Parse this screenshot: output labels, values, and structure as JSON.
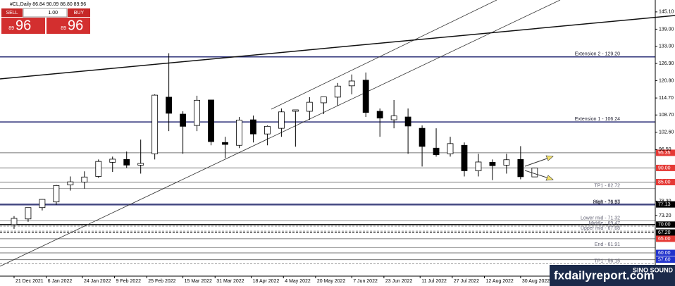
{
  "header": {
    "title": "#CL,Daily  86.84 90.09 86.80 89.96"
  },
  "trade_panel": {
    "sell_label": "SELL",
    "buy_label": "BUY",
    "lot": "1.00",
    "sell_small": "89",
    "sell_big": "96",
    "buy_small": "89",
    "buy_big": "96"
  },
  "watermark": {
    "site": "fxdailyreport.com",
    "brand": "SINO SOUND"
  },
  "chart_data": {
    "type": "candlestick",
    "xlim": [
      "2021-12-14",
      "2022-11-05"
    ],
    "ylim": [
      51.8,
      149.3
    ],
    "yticks": [
      {
        "value": 145.1,
        "label": "145.10"
      },
      {
        "value": 139,
        "label": "139.00"
      },
      {
        "value": 133,
        "label": "133.00"
      },
      {
        "value": 126.9,
        "label": "126.90"
      },
      {
        "value": 120.8,
        "label": "120.80"
      },
      {
        "value": 114.7,
        "label": "114.70"
      },
      {
        "value": 108.7,
        "label": "108.70"
      },
      {
        "value": 102.6,
        "label": "102.60"
      },
      {
        "value": 96.5,
        "label": "96.50"
      },
      {
        "value": 78.3,
        "label": "78.30"
      },
      {
        "value": 73.2,
        "label": "73.20"
      }
    ],
    "xticks": [
      {
        "value": "2021-12-21",
        "label": "21 Dec 2021"
      },
      {
        "value": "2022-01-06",
        "label": "6 Jan 2022"
      },
      {
        "value": "2022-01-24",
        "label": "24 Jan 2022"
      },
      {
        "value": "2022-02-09",
        "label": "9 Feb 2022"
      },
      {
        "value": "2022-02-25",
        "label": "25 Feb 2022"
      },
      {
        "value": "2022-03-15",
        "label": "15 Mar 2022"
      },
      {
        "value": "2022-03-31",
        "label": "31 Mar 2022"
      },
      {
        "value": "2022-04-18",
        "label": "18 Apr 2022"
      },
      {
        "value": "2022-05-04",
        "label": "4 May 2022"
      },
      {
        "value": "2022-05-20",
        "label": "20 May 2022"
      },
      {
        "value": "2022-06-07",
        "label": "7 Jun 2022"
      },
      {
        "value": "2022-06-23",
        "label": "23 Jun 2022"
      },
      {
        "value": "2022-07-11",
        "label": "11 Jul 2022"
      },
      {
        "value": "2022-07-27",
        "label": "27 Jul 2022"
      },
      {
        "value": "2022-08-12",
        "label": "12 Aug 2022"
      },
      {
        "value": "2022-08-30",
        "label": "30 Aug 2022"
      }
    ],
    "up_color": "#ffffff",
    "down_color": "#000000",
    "x": [
      "2021-12-21",
      "2021-12-28",
      "2022-01-04",
      "2022-01-11",
      "2022-01-18",
      "2022-01-25",
      "2022-02-01",
      "2022-02-08",
      "2022-02-15",
      "2022-02-22",
      "2022-03-01",
      "2022-03-08",
      "2022-03-15",
      "2022-03-22",
      "2022-03-29",
      "2022-04-05",
      "2022-04-12",
      "2022-04-19",
      "2022-04-26",
      "2022-05-03",
      "2022-05-10",
      "2022-05-17",
      "2022-05-24",
      "2022-05-31",
      "2022-06-07",
      "2022-06-14",
      "2022-06-21",
      "2022-06-28",
      "2022-07-05",
      "2022-07-12",
      "2022-07-19",
      "2022-07-26",
      "2022-08-02",
      "2022-08-09",
      "2022-08-16",
      "2022-08-23",
      "2022-08-30",
      "2022-09-06"
    ],
    "open": [
      70,
      72,
      76,
      78,
      84,
      85,
      87,
      92,
      93,
      91,
      95,
      115,
      109,
      105,
      114,
      99,
      98,
      107,
      102,
      104,
      110,
      110,
      113,
      115,
      119,
      121,
      110,
      107,
      108,
      104,
      97,
      95,
      98,
      89,
      92,
      91,
      93,
      86.84
    ],
    "high": [
      73,
      76,
      79,
      84,
      87,
      88.8,
      93,
      94,
      95.8,
      100,
      116,
      130.5,
      110,
      115.5,
      114,
      101,
      108,
      108.5,
      105,
      111,
      110,
      115,
      115,
      120,
      123,
      123.7,
      111,
      114,
      111,
      105,
      104,
      101,
      99,
      95,
      93,
      95,
      97.7,
      90.09
    ],
    "low": [
      68.5,
      71,
      75,
      77,
      82,
      82.7,
      86.5,
      88.6,
      90,
      88,
      93,
      103,
      95,
      103,
      98,
      93.5,
      97,
      99,
      98,
      101,
      97.5,
      107,
      109,
      112,
      116,
      108,
      101,
      104,
      95,
      90.5,
      94,
      94,
      87,
      87,
      85.7,
      88,
      86,
      86.8
    ],
    "close": [
      72.2,
      76,
      78.9,
      83.8,
      85.1,
      86.8,
      92.3,
      93.1,
      91,
      91.6,
      115.7,
      109.3,
      104.7,
      113.9,
      99.3,
      98.3,
      106.9,
      102,
      104.7,
      109.8,
      110.5,
      113.2,
      115.1,
      118.9,
      120.7,
      109.6,
      107.6,
      108.4,
      104.8,
      97.6,
      94.7,
      98.6,
      89,
      92.1,
      90.8,
      92.9,
      86.9,
      89.96
    ],
    "levels": [
      {
        "value": 129.2,
        "label": "Extension 2 - 129.20",
        "color": "#2b2f77",
        "width": 1.5
      },
      {
        "value": 106.24,
        "label": "Extension 1 - 106.24",
        "color": "#2b2f77",
        "width": 1.5
      },
      {
        "value": 95.35,
        "tag": "95.35",
        "tag_color": "#e53935",
        "color": "#777",
        "width": 1
      },
      {
        "value": 90,
        "tag": "90.00",
        "tag_color": "#e53935",
        "color": "#777",
        "width": 1
      },
      {
        "value": 85,
        "tag": "85.00",
        "tag_color": "#e53935",
        "color": "#777",
        "width": 1
      },
      {
        "value": 82.72,
        "label": "TP1 - 82.72",
        "color": "#999",
        "width": 1
      },
      {
        "value": 77.13,
        "tag": "77.13",
        "tag_color": "#000000",
        "color": "#2b2f77",
        "width": 2
      },
      {
        "value": 76.97,
        "label": "Start - 76.97",
        "color": "#999",
        "width": 1
      },
      {
        "value": 76.93,
        "label": "High - 76.93",
        "color": "#2b2f77",
        "width": 1
      },
      {
        "value": 71.32,
        "label": "Lower mid - 71.32",
        "color": "#999",
        "width": 1
      },
      {
        "value": 70,
        "tag": "70.00",
        "tag_color": "#000000",
        "color": "#000",
        "width": 1.5
      },
      {
        "value": 69.47,
        "label": "Middle - 69.47",
        "color": "#999",
        "width": 1,
        "dash": true
      },
      {
        "value": 67.68,
        "label": "Upper mid - 67.68",
        "color": "#999",
        "width": 1,
        "dash": true
      },
      {
        "value": 67.2,
        "tag": "67.20",
        "tag_color": "#000000",
        "color": "#000",
        "width": 1,
        "dash": true
      },
      {
        "value": 65,
        "tag": "65.00",
        "tag_color": "#e53935",
        "color": "#777",
        "width": 1
      },
      {
        "value": 61.91,
        "label": "End - 61.91",
        "color": "#999",
        "width": 1
      },
      {
        "value": 60,
        "tag": "60.00",
        "tag_color": "#2233cc",
        "color": "#777",
        "width": 1
      },
      {
        "value": 57.6,
        "tag": "57.60",
        "tag_color": "#2233cc",
        "color": "#777",
        "width": 1
      },
      {
        "value": 56.15,
        "label": "TP1 - 56.15",
        "color": "#999",
        "width": 1,
        "dash": true
      }
    ]
  }
}
